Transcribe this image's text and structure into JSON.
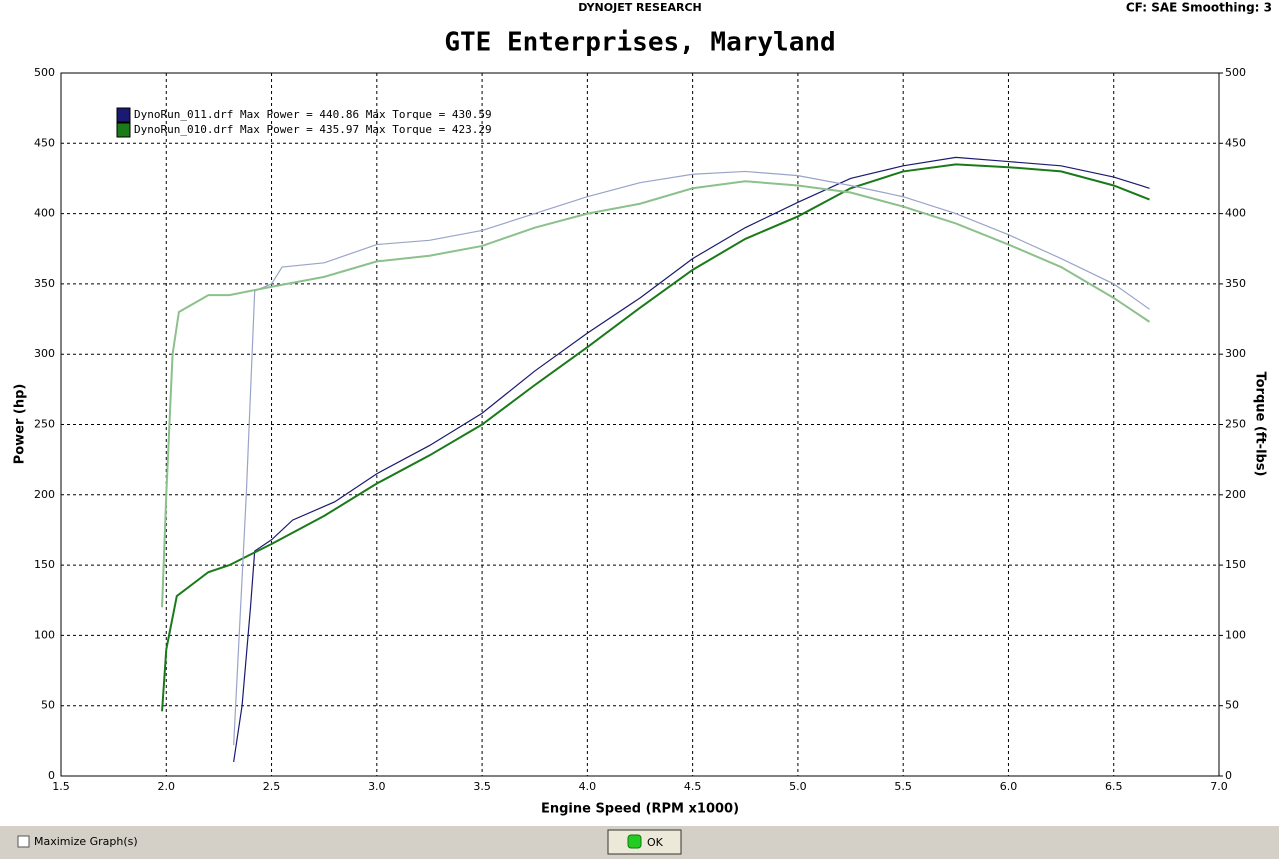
{
  "header": {
    "brand": "DYNOJET RESEARCH",
    "settings": "CF: SAE  Smoothing: 3"
  },
  "chart_data": {
    "type": "line",
    "title": "GTE Enterprises, Maryland",
    "x_label": "Engine Speed (RPM x1000)",
    "y_label": "Power (hp)",
    "y2_label": "Torque (ft-lbs)",
    "xlim": [
      1.5,
      7.0
    ],
    "xticks": [
      1.5,
      {
        "value": 2,
        "label": "2.0"
      },
      2.5,
      {
        "value": 3,
        "label": "3.0"
      },
      3.5,
      {
        "value": 4,
        "label": "4.0"
      },
      4.5,
      {
        "value": 5,
        "label": "5.0"
      },
      5.5,
      {
        "value": 6,
        "label": "6.0"
      },
      6.5,
      {
        "value": 7,
        "label": "7.0"
      }
    ],
    "ylim": [
      0,
      500
    ],
    "yticks": [
      0,
      50,
      100,
      150,
      200,
      250,
      300,
      350,
      400,
      450,
      500
    ],
    "y2lim": [
      0,
      500
    ],
    "y2ticks": [
      0,
      50,
      100,
      150,
      200,
      250,
      300,
      350,
      400,
      450,
      500
    ],
    "grid": true,
    "series": [
      {
        "name": "DynoRun_011.drf Max Power = 440.86 Max Torque = 430.59",
        "color": "#1a1a70",
        "x": [
          2.32,
          2.36,
          2.4,
          2.42,
          2.5,
          2.6,
          2.8,
          3.0,
          3.25,
          3.5,
          3.75,
          4.0,
          4.25,
          4.5,
          4.75,
          5.0,
          5.25,
          5.5,
          5.75,
          6.0,
          6.25,
          6.5,
          6.67
        ],
        "values": [
          10,
          50,
          120,
          160,
          168,
          182,
          195,
          215,
          235,
          258,
          288,
          315,
          340,
          368,
          390,
          408,
          425,
          434,
          440,
          437,
          434,
          426,
          418
        ]
      },
      {
        "name": "DynoRun_010.drf Max Power = 435.97 Max Torque = 423.29",
        "color": "#1a7a1a",
        "x": [
          1.98,
          2.0,
          2.05,
          2.2,
          2.3,
          2.5,
          2.75,
          3.0,
          3.25,
          3.5,
          3.75,
          4.0,
          4.25,
          4.5,
          4.75,
          5.0,
          5.25,
          5.5,
          5.75,
          6.0,
          6.25,
          6.5,
          6.67
        ],
        "values": [
          46,
          90,
          128,
          145,
          150,
          165,
          185,
          208,
          228,
          250,
          278,
          305,
          333,
          360,
          382,
          398,
          418,
          430,
          435,
          433,
          430,
          420,
          410
        ]
      },
      {
        "axis": "y2",
        "color": "#9aa4c8",
        "x": [
          2.32,
          2.38,
          2.42,
          2.5,
          2.55,
          2.75,
          3.0,
          3.25,
          3.5,
          3.75,
          4.0,
          4.25,
          4.5,
          4.75,
          5.0,
          5.25,
          5.5,
          5.75,
          6.0,
          6.25,
          6.5,
          6.67
        ],
        "values": [
          22,
          200,
          345,
          350,
          362,
          365,
          378,
          381,
          388,
          400,
          412,
          422,
          428,
          430,
          427,
          420,
          412,
          400,
          385,
          368,
          350,
          332
        ]
      },
      {
        "axis": "y2",
        "color": "#8cc08c",
        "x": [
          1.98,
          2.0,
          2.03,
          2.06,
          2.2,
          2.3,
          2.5,
          2.75,
          3.0,
          3.25,
          3.5,
          3.75,
          4.0,
          4.25,
          4.5,
          4.75,
          5.0,
          5.25,
          5.5,
          5.75,
          6.0,
          6.25,
          6.5,
          6.67
        ],
        "values": [
          120,
          200,
          300,
          330,
          342,
          342,
          348,
          355,
          366,
          370,
          377,
          390,
          400,
          407,
          418,
          423,
          420,
          415,
          405,
          393,
          378,
          362,
          340,
          323
        ]
      }
    ]
  },
  "footer": {
    "checkbox": "Maximize Graph(s)",
    "button": "OK"
  }
}
